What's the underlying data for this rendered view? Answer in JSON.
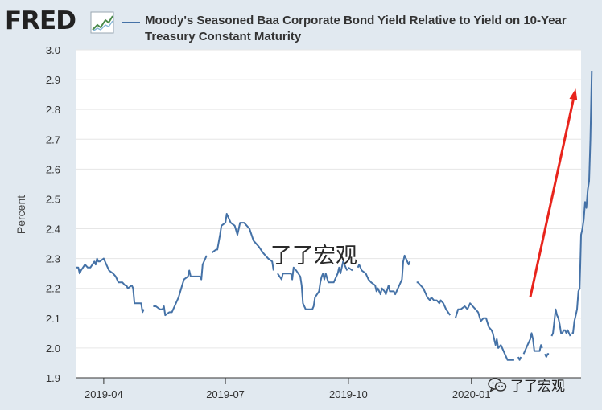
{
  "logo": {
    "text": "FRED"
  },
  "watermark": "了了宏观",
  "badge": {
    "text": "了了宏观",
    "icon": "wechat-icon"
  },
  "colors": {
    "series": "#4572a7",
    "arrow": "#e8241c",
    "background": "#e1e9f0",
    "plot": "#ffffff"
  },
  "chart_data": {
    "type": "line",
    "title": "Moody's Seasoned Baa Corporate Bond Yield Relative to Yield on 10-Year Treasury Constant Maturity",
    "ylabel": "Percent",
    "xlabel": "",
    "ylim": [
      1.9,
      3.0
    ],
    "xlim": [
      "2019-03-11",
      "2020-03-23"
    ],
    "yticks": [
      "1.9",
      "2.0",
      "2.1",
      "2.2",
      "2.3",
      "2.4",
      "2.5",
      "2.6",
      "2.7",
      "2.8",
      "2.9",
      "3.0"
    ],
    "xticks": [
      {
        "date": "2019-04-01",
        "label": "2019-04"
      },
      {
        "date": "2019-07-01",
        "label": "2019-07"
      },
      {
        "date": "2019-10-01",
        "label": "2019-10"
      },
      {
        "date": "2020-01-01",
        "label": "2020-01"
      }
    ],
    "grid": true,
    "legend": "top",
    "annotation": {
      "type": "arrow",
      "from": [
        "2020-02-14",
        2.17
      ],
      "to": [
        "2020-03-19",
        2.87
      ]
    },
    "series": [
      {
        "name": "Moody's Seasoned Baa Corporate Bond Yield Relative to Yield on 10-Year Treasury Constant Maturity",
        "segments": [
          [
            [
              "2019-03-11",
              2.27
            ],
            [
              "2019-03-13",
              2.27
            ],
            [
              "2019-03-14",
              2.25
            ],
            [
              "2019-03-15",
              2.26
            ],
            [
              "2019-03-18",
              2.28
            ],
            [
              "2019-03-20",
              2.27
            ],
            [
              "2019-03-22",
              2.27
            ],
            [
              "2019-03-25",
              2.29
            ],
            [
              "2019-03-26",
              2.28
            ],
            [
              "2019-03-27",
              2.3
            ],
            [
              "2019-03-28",
              2.29
            ],
            [
              "2019-03-29",
              2.29
            ],
            [
              "2019-04-01",
              2.3
            ],
            [
              "2019-04-03",
              2.28
            ],
            [
              "2019-04-05",
              2.26
            ],
            [
              "2019-04-08",
              2.25
            ],
            [
              "2019-04-10",
              2.24
            ],
            [
              "2019-04-12",
              2.22
            ],
            [
              "2019-04-15",
              2.22
            ],
            [
              "2019-04-17",
              2.21
            ],
            [
              "2019-04-18",
              2.21
            ],
            [
              "2019-04-19",
              2.2
            ],
            [
              "2019-04-22",
              2.21
            ],
            [
              "2019-04-23",
              2.2
            ],
            [
              "2019-04-24",
              2.15
            ],
            [
              "2019-04-26",
              2.15
            ],
            [
              "2019-04-29",
              2.15
            ],
            [
              "2019-04-30",
              2.12
            ],
            [
              "2019-05-01",
              2.13
            ]
          ],
          [
            [
              "2019-05-08",
              2.14
            ],
            [
              "2019-05-10",
              2.14
            ],
            [
              "2019-05-13",
              2.13
            ],
            [
              "2019-05-15",
              2.13
            ],
            [
              "2019-05-16",
              2.14
            ],
            [
              "2019-05-17",
              2.11
            ],
            [
              "2019-05-20",
              2.12
            ],
            [
              "2019-05-22",
              2.12
            ],
            [
              "2019-05-24",
              2.14
            ],
            [
              "2019-05-27",
              2.17
            ],
            [
              "2019-05-29",
              2.2
            ],
            [
              "2019-05-31",
              2.23
            ],
            [
              "2019-06-03",
              2.24
            ],
            [
              "2019-06-04",
              2.26
            ],
            [
              "2019-06-05",
              2.24
            ],
            [
              "2019-06-07",
              2.24
            ],
            [
              "2019-06-10",
              2.24
            ],
            [
              "2019-06-12",
              2.24
            ],
            [
              "2019-06-13",
              2.23
            ],
            [
              "2019-06-14",
              2.28
            ],
            [
              "2019-06-17",
              2.31
            ]
          ],
          [
            [
              "2019-06-21",
              2.32
            ],
            [
              "2019-06-24",
              2.33
            ],
            [
              "2019-06-25",
              2.33
            ],
            [
              "2019-06-27",
              2.38
            ],
            [
              "2019-06-28",
              2.41
            ],
            [
              "2019-07-01",
              2.42
            ],
            [
              "2019-07-02",
              2.45
            ],
            [
              "2019-07-03",
              2.44
            ],
            [
              "2019-07-05",
              2.42
            ],
            [
              "2019-07-08",
              2.41
            ],
            [
              "2019-07-10",
              2.38
            ],
            [
              "2019-07-12",
              2.42
            ],
            [
              "2019-07-15",
              2.42
            ],
            [
              "2019-07-17",
              2.41
            ],
            [
              "2019-07-19",
              2.4
            ],
            [
              "2019-07-22",
              2.36
            ],
            [
              "2019-07-24",
              2.35
            ],
            [
              "2019-07-26",
              2.34
            ],
            [
              "2019-07-29",
              2.32
            ],
            [
              "2019-07-31",
              2.31
            ],
            [
              "2019-08-02",
              2.3
            ],
            [
              "2019-08-05",
              2.29
            ],
            [
              "2019-08-06",
              2.26
            ]
          ],
          [
            [
              "2019-08-09",
              2.25
            ],
            [
              "2019-08-12",
              2.23
            ],
            [
              "2019-08-13",
              2.25
            ],
            [
              "2019-08-14",
              2.25
            ],
            [
              "2019-08-16",
              2.25
            ],
            [
              "2019-08-19",
              2.25
            ],
            [
              "2019-08-20",
              2.23
            ],
            [
              "2019-08-21",
              2.27
            ],
            [
              "2019-08-23",
              2.26
            ],
            [
              "2019-08-26",
              2.24
            ],
            [
              "2019-08-27",
              2.21
            ],
            [
              "2019-08-28",
              2.15
            ],
            [
              "2019-08-30",
              2.13
            ],
            [
              "2019-09-02",
              2.13
            ],
            [
              "2019-09-04",
              2.13
            ],
            [
              "2019-09-05",
              2.14
            ],
            [
              "2019-09-06",
              2.17
            ],
            [
              "2019-09-09",
              2.19
            ],
            [
              "2019-09-10",
              2.22
            ],
            [
              "2019-09-11",
              2.24
            ],
            [
              "2019-09-12",
              2.25
            ],
            [
              "2019-09-13",
              2.23
            ],
            [
              "2019-09-14",
              2.25
            ],
            [
              "2019-09-16",
              2.22
            ],
            [
              "2019-09-18",
              2.22
            ],
            [
              "2019-09-20",
              2.22
            ],
            [
              "2019-09-23",
              2.25
            ],
            [
              "2019-09-24",
              2.27
            ],
            [
              "2019-09-25",
              2.25
            ],
            [
              "2019-09-27",
              2.29
            ],
            [
              "2019-09-30",
              2.26
            ]
          ],
          [
            [
              "2019-10-01",
              2.27
            ],
            [
              "2019-10-04",
              2.26
            ]
          ],
          [
            [
              "2019-10-08",
              2.27
            ],
            [
              "2019-10-09",
              2.28
            ],
            [
              "2019-10-11",
              2.26
            ],
            [
              "2019-10-14",
              2.25
            ],
            [
              "2019-10-16",
              2.23
            ],
            [
              "2019-10-18",
              2.22
            ],
            [
              "2019-10-21",
              2.21
            ],
            [
              "2019-10-22",
              2.19
            ],
            [
              "2019-10-23",
              2.2
            ],
            [
              "2019-10-25",
              2.18
            ],
            [
              "2019-10-26",
              2.2
            ],
            [
              "2019-10-28",
              2.19
            ],
            [
              "2019-10-29",
              2.18
            ],
            [
              "2019-10-31",
              2.21
            ],
            [
              "2019-11-01",
              2.19
            ],
            [
              "2019-11-04",
              2.19
            ],
            [
              "2019-11-05",
              2.18
            ],
            [
              "2019-11-07",
              2.2
            ],
            [
              "2019-11-08",
              2.21
            ],
            [
              "2019-11-10",
              2.23
            ],
            [
              "2019-11-11",
              2.29
            ],
            [
              "2019-11-12",
              2.31
            ],
            [
              "2019-11-13",
              2.3
            ],
            [
              "2019-11-15",
              2.28
            ],
            [
              "2019-11-16",
              2.29
            ]
          ],
          [
            [
              "2019-11-21",
              2.22
            ],
            [
              "2019-11-22",
              2.22
            ],
            [
              "2019-11-24",
              2.21
            ],
            [
              "2019-11-26",
              2.2
            ],
            [
              "2019-11-28",
              2.18
            ],
            [
              "2019-11-29",
              2.17
            ],
            [
              "2019-12-01",
              2.16
            ],
            [
              "2019-12-02",
              2.17
            ],
            [
              "2019-12-04",
              2.16
            ],
            [
              "2019-12-06",
              2.16
            ],
            [
              "2019-12-08",
              2.15
            ],
            [
              "2019-12-09",
              2.16
            ],
            [
              "2019-12-11",
              2.15
            ],
            [
              "2019-12-13",
              2.13
            ],
            [
              "2019-12-16",
              2.11
            ]
          ],
          [
            [
              "2019-12-20",
              2.1
            ],
            [
              "2019-12-22",
              2.13
            ],
            [
              "2019-12-24",
              2.13
            ],
            [
              "2019-12-27",
              2.14
            ],
            [
              "2019-12-29",
              2.13
            ],
            [
              "2019-12-31",
              2.15
            ],
            [
              "2020-01-02",
              2.14
            ],
            [
              "2020-01-04",
              2.13
            ],
            [
              "2020-01-06",
              2.12
            ],
            [
              "2020-01-08",
              2.09
            ],
            [
              "2020-01-10",
              2.1
            ],
            [
              "2020-01-12",
              2.1
            ],
            [
              "2020-01-14",
              2.07
            ],
            [
              "2020-01-16",
              2.06
            ],
            [
              "2020-01-17",
              2.05
            ],
            [
              "2020-01-19",
              2.01
            ],
            [
              "2020-01-20",
              2.03
            ],
            [
              "2020-01-21",
              2.0
            ],
            [
              "2020-01-23",
              2.01
            ],
            [
              "2020-01-24",
              2.0
            ],
            [
              "2020-01-26",
              1.98
            ],
            [
              "2020-01-28",
              1.96
            ],
            [
              "2020-01-31",
              1.96
            ],
            [
              "2020-02-02",
              1.96
            ]
          ],
          [
            [
              "2020-02-05",
              1.97
            ],
            [
              "2020-02-06",
              1.96
            ],
            [
              "2020-02-07",
              1.97
            ]
          ],
          [
            [
              "2020-02-09",
              1.98
            ],
            [
              "2020-02-10",
              1.99
            ],
            [
              "2020-02-12",
              2.01
            ],
            [
              "2020-02-14",
              2.03
            ],
            [
              "2020-02-15",
              2.05
            ],
            [
              "2020-02-16",
              2.03
            ],
            [
              "2020-02-17",
              1.99
            ],
            [
              "2020-02-19",
              1.99
            ],
            [
              "2020-02-20",
              1.99
            ],
            [
              "2020-02-21",
              1.99
            ],
            [
              "2020-02-22",
              2.01
            ],
            [
              "2020-02-23",
              2.0
            ]
          ],
          [
            [
              "2020-02-25",
              1.98
            ],
            [
              "2020-02-26",
              1.97
            ],
            [
              "2020-02-27",
              1.98
            ],
            [
              "2020-02-28",
              1.98
            ]
          ],
          [
            [
              "2020-03-01",
              2.04
            ],
            [
              "2020-03-02",
              2.05
            ],
            [
              "2020-03-03",
              2.09
            ],
            [
              "2020-03-04",
              2.13
            ],
            [
              "2020-03-05",
              2.11
            ],
            [
              "2020-03-06",
              2.1
            ],
            [
              "2020-03-07",
              2.08
            ],
            [
              "2020-03-08",
              2.05
            ],
            [
              "2020-03-09",
              2.05
            ],
            [
              "2020-03-10",
              2.06
            ],
            [
              "2020-03-11",
              2.06
            ],
            [
              "2020-03-12",
              2.05
            ],
            [
              "2020-03-13",
              2.06
            ],
            [
              "2020-03-14",
              2.05
            ],
            [
              "2020-03-15",
              2.04
            ]
          ],
          [
            [
              "2020-03-16",
              2.05
            ],
            [
              "2020-03-17",
              2.05
            ],
            [
              "2020-03-18",
              2.09
            ],
            [
              "2020-03-19",
              2.11
            ],
            [
              "2020-03-20",
              2.13
            ],
            [
              "2020-03-21",
              2.19
            ],
            [
              "2020-03-22",
              2.2
            ],
            [
              "2020-03-23",
              2.38
            ],
            [
              "2020-03-24",
              2.4
            ],
            [
              "2020-03-25",
              2.43
            ],
            [
              "2020-03-26",
              2.49
            ],
            [
              "2020-03-27",
              2.47
            ],
            [
              "2020-03-28",
              2.53
            ],
            [
              "2020-03-29",
              2.56
            ],
            [
              "2020-03-30",
              2.7
            ],
            [
              "2020-03-31",
              2.93
            ]
          ]
        ]
      }
    ]
  }
}
